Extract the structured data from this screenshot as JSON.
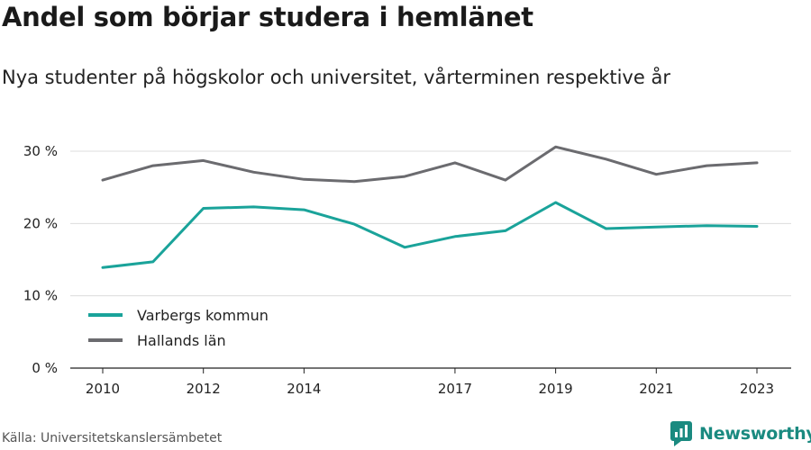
{
  "title": "Andel som börjar studera i hemlänet",
  "subtitle": "Nya studenter på högskolor och universitet, vårterminen respektive år",
  "source": "Källa: Universitetskanslersämbetet",
  "brand": {
    "name": "Newsworthy",
    "icon": "newsworthy-logo-icon",
    "color": "#1a8a80"
  },
  "chart_data": {
    "type": "line",
    "title": "Andel som börjar studera i hemlänet",
    "subtitle": "Nya studenter på högskolor och universitet, vårterminen respektive år",
    "xlabel": "",
    "ylabel": "",
    "x": [
      2010,
      2011,
      2012,
      2013,
      2014,
      2015,
      2016,
      2017,
      2018,
      2019,
      2020,
      2021,
      2022,
      2023
    ],
    "x_ticks": [
      "2010",
      "2012",
      "2014",
      "2017",
      "2019",
      "2021",
      "2023"
    ],
    "y_ticks": [
      "0 %",
      "10 %",
      "20 %",
      "30 %"
    ],
    "ylim": [
      0,
      30
    ],
    "grid": true,
    "legend_position": "bottom-left",
    "series": [
      {
        "name": "Varbergs kommun",
        "color": "#1aa39a",
        "values": [
          13.9,
          14.7,
          22.1,
          22.3,
          21.9,
          19.9,
          16.7,
          18.2,
          19.0,
          22.9,
          19.3,
          19.5,
          19.7,
          19.6
        ]
      },
      {
        "name": "Hallands län",
        "color": "#6b6b6f",
        "values": [
          26.0,
          28.0,
          28.7,
          27.1,
          26.1,
          25.8,
          26.5,
          28.4,
          26.0,
          30.6,
          28.9,
          26.8,
          28.0,
          28.4
        ]
      }
    ]
  }
}
